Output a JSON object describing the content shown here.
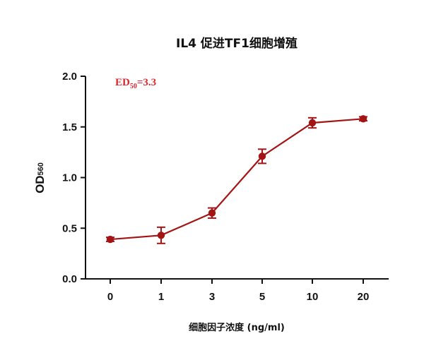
{
  "colors": {
    "series": "#a31515",
    "annotation": "#e0262b",
    "axis": "#111111"
  },
  "chart_data": {
    "type": "line",
    "title": "IL4 促进TF1细胞增殖",
    "xlabel": "细胞因子浓度 (ng/ml)",
    "ylabel": "OD",
    "ylabel_subscript": "560",
    "annotation": {
      "text": "ED",
      "subscript": "50",
      "suffix": "=3.3"
    },
    "x_scale": "categorical",
    "categories": [
      "0",
      "1",
      "3",
      "5",
      "10",
      "20"
    ],
    "ylim": [
      0,
      2.0
    ],
    "yticks": [
      "0.0",
      "0.5",
      "1.0",
      "1.5",
      "2.0"
    ],
    "grid": false,
    "series": [
      {
        "values": [
          0.39,
          0.43,
          0.65,
          1.21,
          1.54,
          1.58
        ],
        "errors": [
          0.02,
          0.08,
          0.05,
          0.07,
          0.05,
          0.02
        ]
      }
    ]
  }
}
